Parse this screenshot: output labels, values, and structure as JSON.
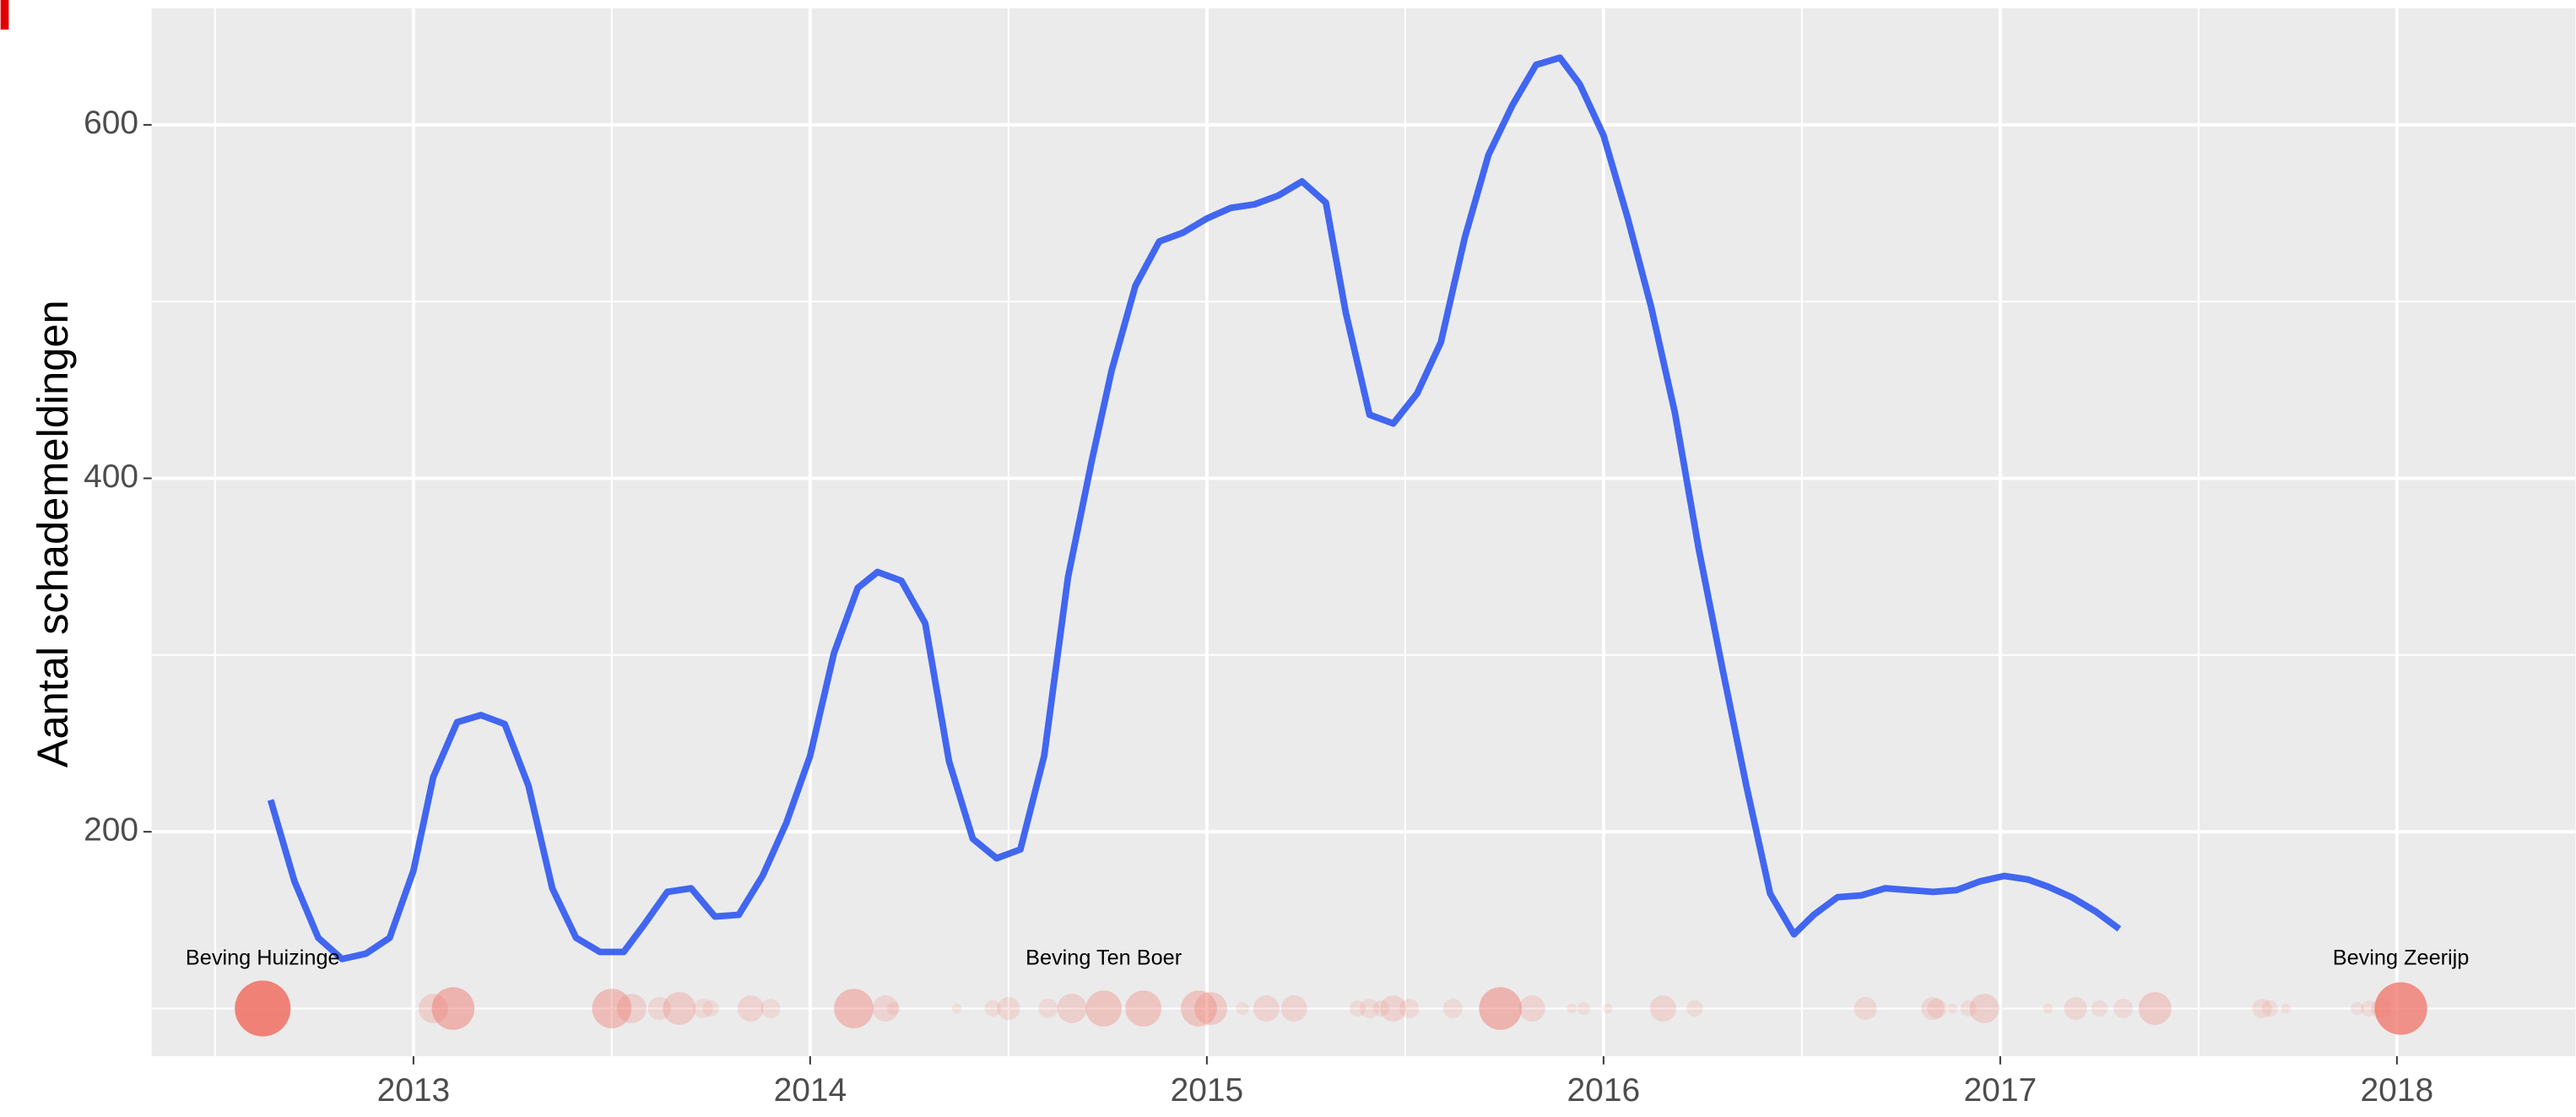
{
  "chart_data": {
    "type": "line",
    "y_label": "Aantal schademeldingen",
    "xlim": [
      2012.34,
      2018.45
    ],
    "ylim": [
      73,
      666
    ],
    "xticks": [
      2013,
      2014,
      2015,
      2016,
      2017,
      2018
    ],
    "yticks": [
      200,
      400,
      600
    ],
    "grid": true,
    "series": [
      {
        "color": "#4166f0",
        "x": [
          2012.64,
          2012.7,
          2012.76,
          2012.82,
          2012.88,
          2012.94,
          2013.0,
          2013.05,
          2013.11,
          2013.17,
          2013.23,
          2013.29,
          2013.35,
          2013.41,
          2013.47,
          2013.53,
          2013.58,
          2013.64,
          2013.7,
          2013.76,
          2013.82,
          2013.88,
          2013.94,
          2014.0,
          2014.06,
          2014.12,
          2014.17,
          2014.23,
          2014.29,
          2014.35,
          2014.41,
          2014.47,
          2014.53,
          2014.59,
          2014.65,
          2014.71,
          2014.76,
          2014.82,
          2014.88,
          2014.94,
          2015.0,
          2015.06,
          2015.12,
          2015.18,
          2015.24,
          2015.3,
          2015.35,
          2015.41,
          2015.47,
          2015.53,
          2015.59,
          2015.65,
          2015.71,
          2015.77,
          2015.83,
          2015.89,
          2015.94,
          2016.0,
          2016.06,
          2016.12,
          2016.18,
          2016.24,
          2016.3,
          2016.36,
          2016.42,
          2016.48,
          2016.53,
          2016.59,
          2016.65,
          2016.71,
          2016.77,
          2016.83,
          2016.89,
          2016.95,
          2017.01,
          2017.07,
          2017.12,
          2017.18,
          2017.24,
          2017.3
        ],
        "values": [
          218,
          172,
          140,
          128,
          131,
          140,
          178,
          231,
          262,
          266,
          261,
          226,
          168,
          140,
          132,
          132,
          147,
          166,
          168,
          152,
          153,
          175,
          205,
          243,
          301,
          338,
          347,
          342,
          318,
          240,
          196,
          185,
          190,
          243,
          344,
          410,
          461,
          509,
          534,
          539,
          547,
          553,
          555,
          560,
          568,
          556,
          494,
          436,
          431,
          448,
          477,
          536,
          583,
          611,
          634,
          638,
          623,
          594,
          548,
          497,
          437,
          360,
          292,
          226,
          165,
          142,
          153,
          163,
          164,
          168,
          167,
          166,
          167,
          172,
          175,
          173,
          169,
          163,
          155,
          145
        ]
      }
    ],
    "points": {
      "color": "#f0756a",
      "x": [
        2012.62,
        2013.05,
        2013.1,
        2013.5,
        2013.55,
        2013.62,
        2013.67,
        2013.73,
        2013.75,
        2013.85,
        2013.9,
        2014.11,
        2014.19,
        2014.21,
        2014.37,
        2014.46,
        2014.5,
        2014.6,
        2014.66,
        2014.74,
        2014.84,
        2014.98,
        2015.01,
        2015.09,
        2015.15,
        2015.22,
        2015.38,
        2015.41,
        2015.44,
        2015.47,
        2015.51,
        2015.62,
        2015.74,
        2015.82,
        2015.92,
        2015.95,
        2016.01,
        2016.15,
        2016.23,
        2016.66,
        2016.83,
        2016.84,
        2016.88,
        2016.92,
        2016.96,
        2017.12,
        2017.19,
        2017.25,
        2017.31,
        2017.39,
        2017.66,
        2017.68,
        2017.72,
        2017.9,
        2017.93,
        2017.96,
        2018.01
      ],
      "values": [
        100,
        100,
        100,
        100,
        100,
        100,
        100,
        100,
        100,
        100,
        100,
        100,
        100,
        100,
        100,
        100,
        100,
        100,
        100,
        100,
        100,
        100,
        100,
        100,
        100,
        100,
        100,
        100,
        100,
        100,
        100,
        100,
        100,
        100,
        100,
        100,
        100,
        100,
        100,
        100,
        100,
        100,
        100,
        100,
        100,
        100,
        100,
        100,
        100,
        100,
        100,
        100,
        100,
        100,
        100,
        100,
        100
      ],
      "sizes": [
        17,
        9,
        13,
        12,
        9,
        7,
        10,
        6,
        5,
        8,
        6,
        12,
        8,
        4,
        3,
        5,
        7,
        6,
        9,
        11,
        11,
        11,
        10,
        4,
        8,
        8,
        5,
        6,
        5,
        8,
        6,
        6,
        13,
        8,
        3,
        4,
        3,
        8,
        5,
        7,
        7,
        6,
        3,
        5,
        9,
        3,
        7,
        5,
        6,
        10,
        6,
        5,
        3,
        4,
        5,
        6,
        16
      ]
    },
    "annotations": [
      {
        "text": "Beving Huizinge",
        "x": 2012.62,
        "y": 128
      },
      {
        "text": "Beving Ten Boer",
        "x": 2014.74,
        "y": 128
      },
      {
        "text": "Beving Zeerijp",
        "x": 2018.01,
        "y": 128
      }
    ]
  }
}
